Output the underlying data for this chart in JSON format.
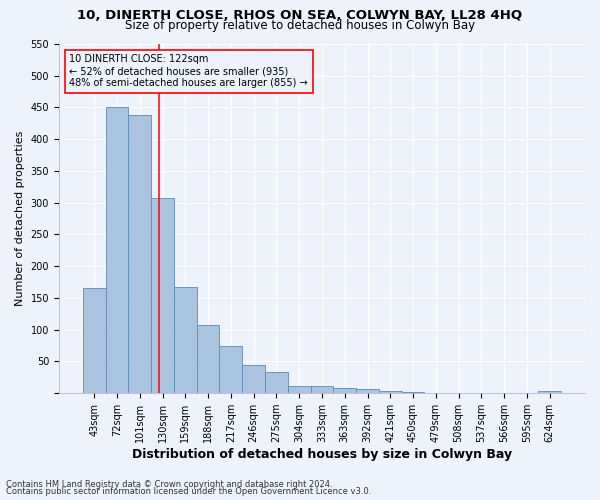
{
  "title1": "10, DINERTH CLOSE, RHOS ON SEA, COLWYN BAY, LL28 4HQ",
  "title2": "Size of property relative to detached houses in Colwyn Bay",
  "xlabel": "Distribution of detached houses by size in Colwyn Bay",
  "ylabel": "Number of detached properties",
  "categories": [
    "43sqm",
    "72sqm",
    "101sqm",
    "130sqm",
    "159sqm",
    "188sqm",
    "217sqm",
    "246sqm",
    "275sqm",
    "304sqm",
    "333sqm",
    "363sqm",
    "392sqm",
    "421sqm",
    "450sqm",
    "479sqm",
    "508sqm",
    "537sqm",
    "566sqm",
    "595sqm",
    "624sqm"
  ],
  "values": [
    165,
    450,
    438,
    307,
    168,
    107,
    74,
    45,
    33,
    11,
    11,
    8,
    7,
    4,
    2,
    1,
    1,
    0,
    0,
    0,
    4
  ],
  "bar_color": "#aac4e0",
  "bar_edge_color": "#5b8db8",
  "vline_x_index": 2.85,
  "annotation_box_text": "10 DINERTH CLOSE: 122sqm\n← 52% of detached houses are smaller (935)\n48% of semi-detached houses are larger (855) →",
  "ylim": [
    0,
    550
  ],
  "yticks": [
    0,
    50,
    100,
    150,
    200,
    250,
    300,
    350,
    400,
    450,
    500,
    550
  ],
  "footnote1": "Contains HM Land Registry data © Crown copyright and database right 2024.",
  "footnote2": "Contains public sector information licensed under the Open Government Licence v3.0.",
  "bg_color": "#eef2fb",
  "grid_color": "#ffffff",
  "title1_fontsize": 9.5,
  "title2_fontsize": 8.5,
  "xlabel_fontsize": 9,
  "ylabel_fontsize": 8,
  "tick_fontsize": 7,
  "annot_fontsize": 7,
  "footnote_fontsize": 6
}
